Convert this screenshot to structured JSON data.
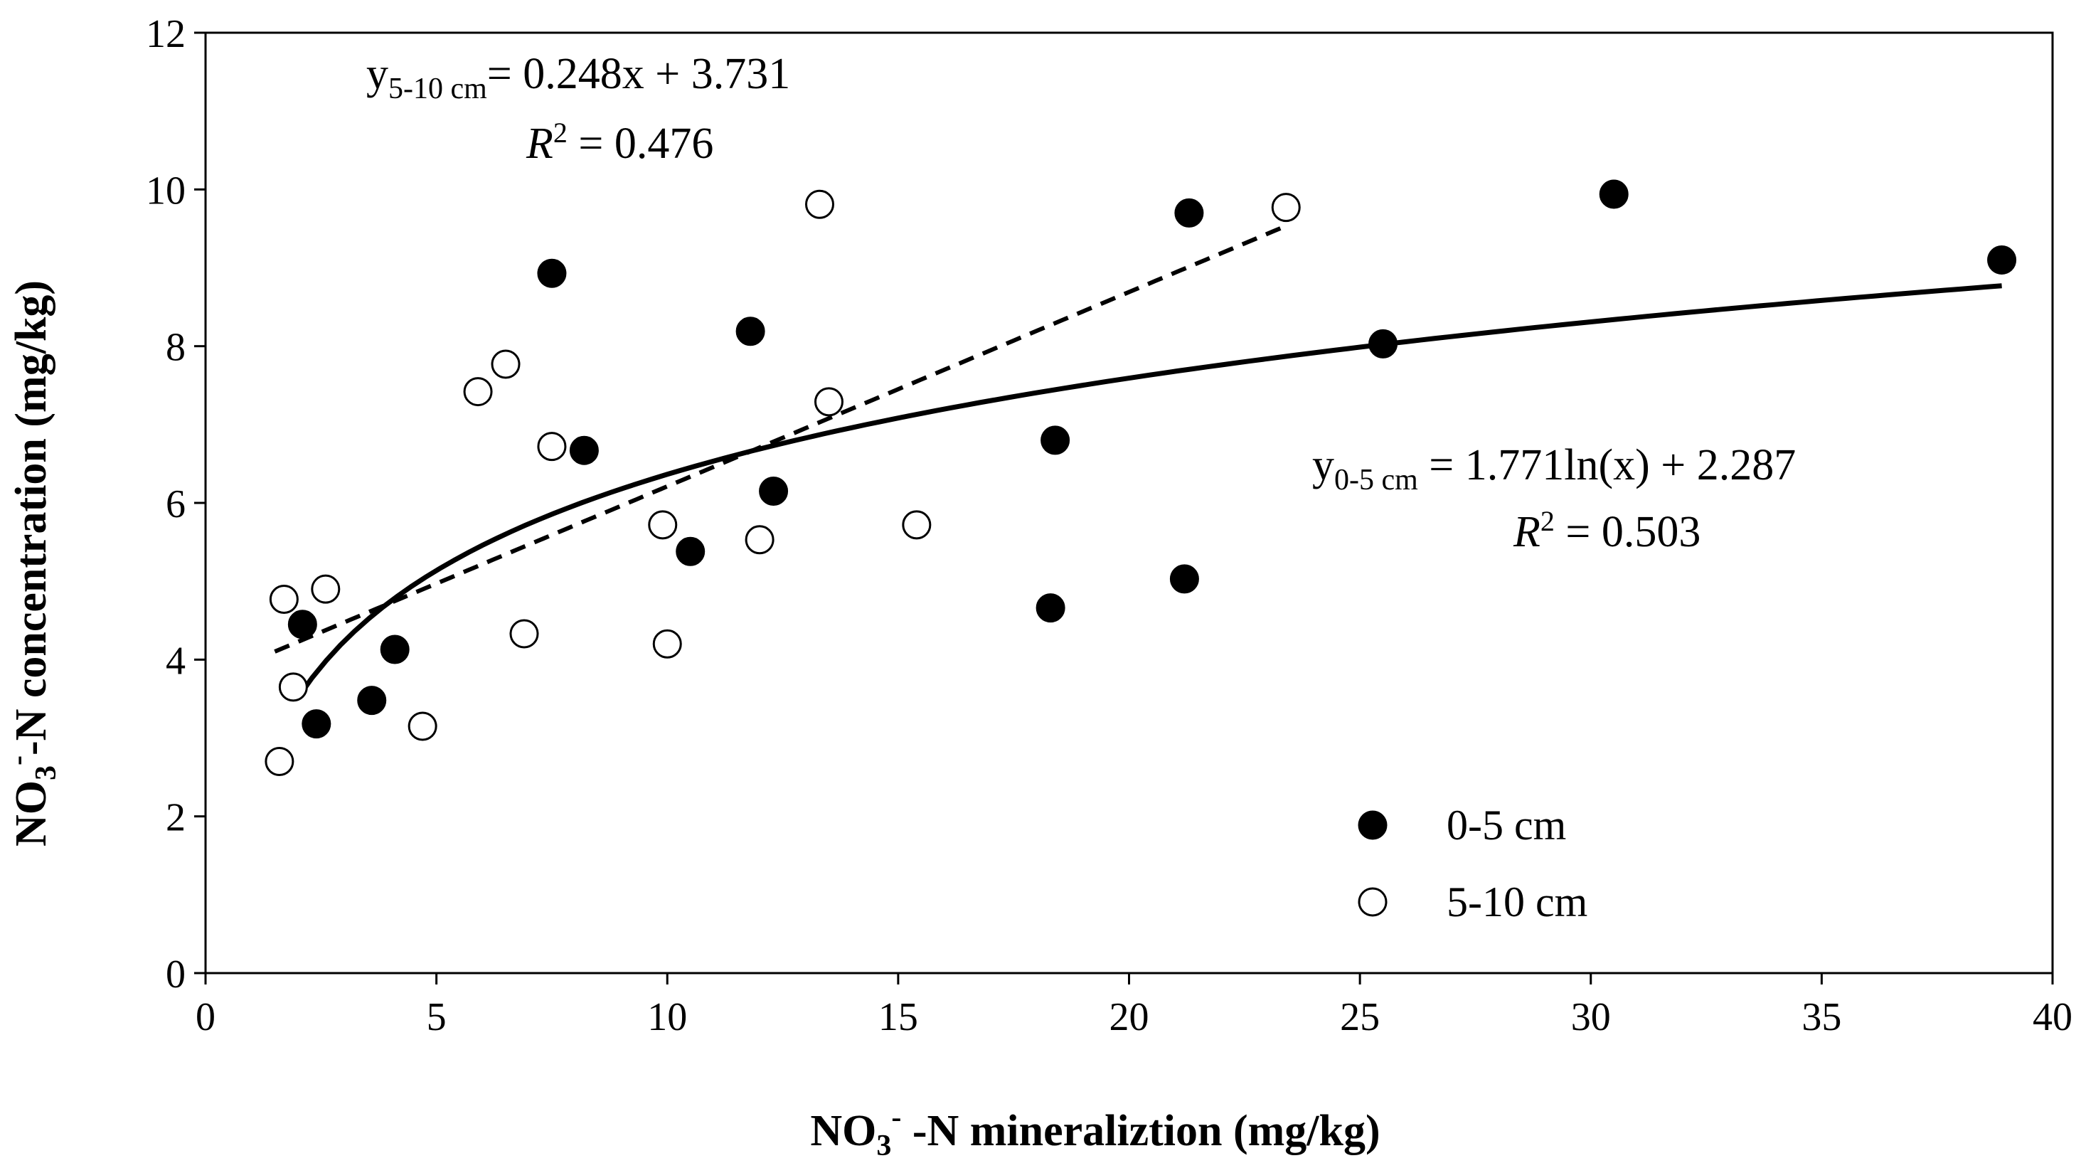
{
  "chart_data": {
    "type": "scatter",
    "xlabel": {
      "base": "NO",
      "sub": "3",
      "sup": "-",
      "rest": " -N mineraliztion (mg/kg)"
    },
    "ylabel": {
      "base": "NO",
      "sub": "3",
      "sup": "-",
      "rest": "-N concentration (mg/kg)"
    },
    "xlim": [
      0,
      40
    ],
    "ylim": [
      0,
      12
    ],
    "x_ticks": [
      "0",
      "5",
      "10",
      "15",
      "20",
      "25",
      "30",
      "35",
      "40"
    ],
    "y_ticks": [
      "0",
      "2",
      "4",
      "6",
      "8",
      "10",
      "12"
    ],
    "grid": false,
    "legend_position": "bottom-right",
    "series": [
      {
        "name": "0-5 cm",
        "marker": "filled-circle",
        "color": "#000000",
        "points": [
          [
            2.1,
            4.45
          ],
          [
            2.4,
            3.18
          ],
          [
            3.6,
            3.48
          ],
          [
            4.1,
            4.13
          ],
          [
            7.5,
            8.93
          ],
          [
            8.2,
            6.67
          ],
          [
            10.5,
            5.38
          ],
          [
            11.8,
            8.19
          ],
          [
            12.3,
            6.15
          ],
          [
            18.3,
            4.66
          ],
          [
            18.4,
            6.8
          ],
          [
            21.2,
            5.03
          ],
          [
            21.3,
            9.7
          ],
          [
            25.5,
            8.03
          ],
          [
            30.5,
            9.94
          ],
          [
            38.9,
            9.1
          ]
        ],
        "trendline": {
          "kind": "log",
          "a": 1.771,
          "b": 2.287,
          "x_range": [
            2.0,
            38.9
          ],
          "style": "solid"
        }
      },
      {
        "name": "5-10 cm",
        "marker": "open-circle",
        "color": "#000000",
        "points": [
          [
            1.6,
            2.7
          ],
          [
            1.7,
            4.77
          ],
          [
            1.9,
            3.65
          ],
          [
            2.6,
            4.9
          ],
          [
            4.7,
            3.15
          ],
          [
            5.9,
            7.42
          ],
          [
            6.5,
            7.77
          ],
          [
            6.9,
            4.33
          ],
          [
            7.5,
            6.72
          ],
          [
            9.9,
            5.72
          ],
          [
            10.0,
            4.2
          ],
          [
            12.0,
            5.53
          ],
          [
            13.3,
            9.81
          ],
          [
            13.5,
            7.29
          ],
          [
            15.4,
            5.72
          ],
          [
            23.4,
            9.77
          ]
        ],
        "trendline": {
          "kind": "linear",
          "a": 0.248,
          "b": 3.731,
          "x_range": [
            1.5,
            23.3
          ],
          "style": "dashed"
        }
      }
    ],
    "annotations": {
      "eq_5_10": {
        "y_base": "y",
        "y_sub": "5-10 cm",
        "rhs": "= 0.248x + 3.731",
        "r2_label": "R",
        "r2_sup": "2",
        "r2_value": " = 0.476"
      },
      "eq_0_5": {
        "y_base": "y",
        "y_sub": "0-5 cm",
        "rhs": " = 1.771ln(x) + 2.287",
        "r2_label": "R",
        "r2_sup": "2",
        "r2_value": " = 0.503"
      }
    }
  }
}
